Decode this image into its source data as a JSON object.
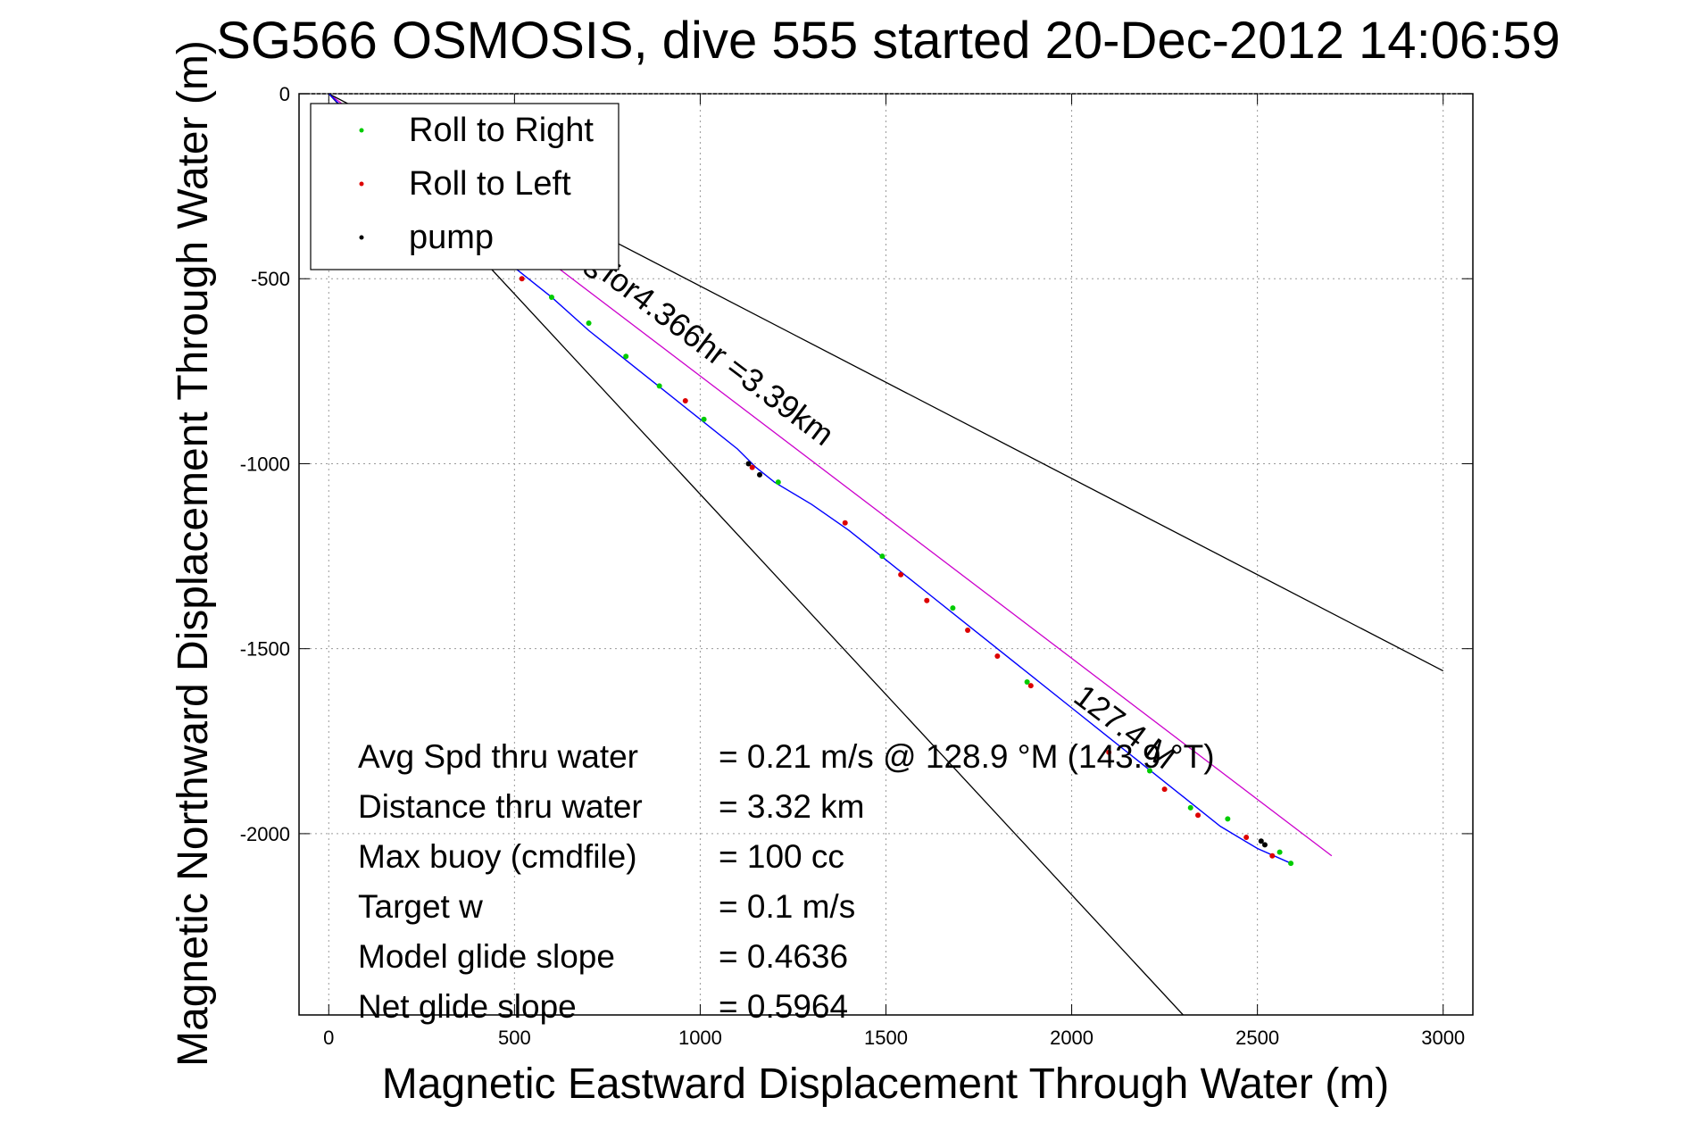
{
  "chart_data": {
    "type": "scatter",
    "title": "SG566 OSMOSIS, dive 555 started 20-Dec-2012 14:06:59",
    "xlabel": "Magnetic Eastward Displacement Through Water (m)",
    "ylabel": "Magnetic Northward Displacement Through Water (m)",
    "xlim": [
      -80,
      3080
    ],
    "ylim": [
      -2490,
      0
    ],
    "x_ticks": [
      0,
      500,
      1000,
      1500,
      2000,
      2500,
      3000
    ],
    "y_ticks": [
      0,
      -500,
      -1000,
      -1500,
      -2000
    ],
    "x_tick_labels": [
      "0",
      "500",
      "1000",
      "1500",
      "2000",
      "2500",
      "3000"
    ],
    "y_tick_labels": [
      "0",
      "-500",
      "-1000",
      "-1500",
      "-2000"
    ],
    "grid": true,
    "legend_position": "top-left",
    "colors": {
      "roll_right": "#00cc00",
      "roll_left": "#dd0000",
      "pump": "#000000",
      "track": "#0000ff",
      "heading_line": "#cc00cc",
      "envelope": "#000000"
    },
    "series": [
      {
        "name": "Roll to Right",
        "color": "#00cc00",
        "x": [
          10,
          600,
          700,
          800,
          890,
          1010,
          1210,
          1490,
          1680,
          1880,
          2210,
          2320,
          2420,
          2560,
          2590
        ],
        "y": [
          -40,
          -550,
          -620,
          -710,
          -790,
          -880,
          -1050,
          -1250,
          -1390,
          -1590,
          -1830,
          -1930,
          -1960,
          -2050,
          -2080
        ]
      },
      {
        "name": "Roll to Left",
        "color": "#dd0000",
        "x": [
          520,
          960,
          1140,
          1390,
          1540,
          1610,
          1720,
          1800,
          1890,
          2100,
          2250,
          2340,
          2470,
          2540
        ],
        "y": [
          -500,
          -830,
          -1010,
          -1160,
          -1300,
          -1370,
          -1450,
          -1520,
          -1600,
          -1780,
          -1880,
          -1950,
          -2010,
          -2060
        ]
      },
      {
        "name": "pump",
        "color": "#000000",
        "x": [
          1130,
          1160,
          2510,
          2520
        ],
        "y": [
          -1000,
          -1030,
          -2020,
          -2030
        ]
      },
      {
        "name": "",
        "color": "#0000ff",
        "x": [
          0,
          200,
          400,
          500,
          600,
          700,
          800,
          900,
          1000,
          1100,
          1150,
          1200,
          1300,
          1400,
          1500,
          1600,
          1700,
          1800,
          1900,
          2000,
          2100,
          2200,
          2300,
          2400,
          2500,
          2590
        ],
        "y": [
          0,
          -200,
          -380,
          -470,
          -550,
          -640,
          -720,
          -800,
          -880,
          -960,
          -1010,
          -1050,
          -1110,
          -1180,
          -1260,
          -1340,
          -1420,
          -1500,
          -1580,
          -1660,
          -1740,
          -1820,
          -1900,
          -1980,
          -2040,
          -2080
        ]
      }
    ],
    "lines": [
      {
        "name": "",
        "color": "#cc00cc",
        "x": [
          0,
          2700
        ],
        "y": [
          0,
          -2060
        ]
      },
      {
        "name": "",
        "color": "#000000",
        "x": [
          0,
          3000
        ],
        "y": [
          0,
          -1560
        ]
      },
      {
        "name": "",
        "color": "#000000",
        "x": [
          0,
          2300
        ],
        "y": [
          0,
          -2490
        ]
      }
    ],
    "annotations": [
      {
        "text": "for4.366hr =3.39km",
        "x": 730,
        "y": -500,
        "angle": 37
      },
      {
        "text": "127.4 M",
        "x": 2000,
        "y": -1640,
        "angle": 37
      },
      {
        "text": "s",
        "x": 680,
        "y": -480,
        "angle": 37
      },
      {
        "text": "/",
        "x": 515,
        "y": -470,
        "angle": 37
      }
    ],
    "stats": [
      {
        "label": "Avg Spd thru water",
        "value": "=  0.21 m/s @ 128.9 °M (143.9 °T)"
      },
      {
        "label": "Distance thru water",
        "value": "=  3.32 km"
      },
      {
        "label": "Max buoy (cmdfile)",
        "value": "= 100 cc"
      },
      {
        "label": "Target w",
        "value": "= 0.1 m/s"
      },
      {
        "label": "Model glide slope",
        "value": "= 0.4636"
      },
      {
        "label": "Net glide slope",
        "value": "= 0.5964"
      }
    ]
  }
}
